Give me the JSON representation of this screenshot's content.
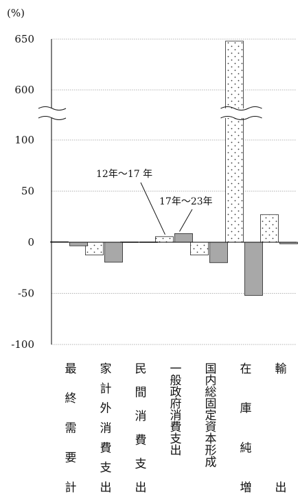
{
  "chart_data": {
    "type": "bar",
    "unit_label": "(%)",
    "categories": [
      "最終需要計",
      "家計外消費支出",
      "民間消費支出",
      "一般政府消費支出",
      "国内総固定資本形成",
      "在庫純増",
      "輸出"
    ],
    "series": [
      {
        "values": [
          0.5,
          -12.5,
          0.3,
          5.5,
          -12.5,
          648,
          27
        ]
      },
      {
        "values": [
          -3.5,
          -19.5,
          0.3,
          8.5,
          -20,
          -52,
          -1.5
        ]
      }
    ],
    "y_ticks": [
      "650",
      "600",
      "100",
      "50",
      "0",
      "-50",
      "-100"
    ],
    "ylim": [
      -100,
      650
    ],
    "axis_break": [
      100,
      600
    ],
    "annotations": [
      {
        "text": "12年〜17 年",
        "category": "一般政府消費支出",
        "series": 0
      },
      {
        "text": "17年〜23年",
        "category": "一般政府消費支出",
        "series": 1
      }
    ],
    "grid": true,
    "colors": {
      "series0_fill": "#ffffff",
      "series0_dots": "#333333",
      "series1_fill": "#a8a8a8",
      "axis": "#000000",
      "grid": "#999999"
    }
  }
}
